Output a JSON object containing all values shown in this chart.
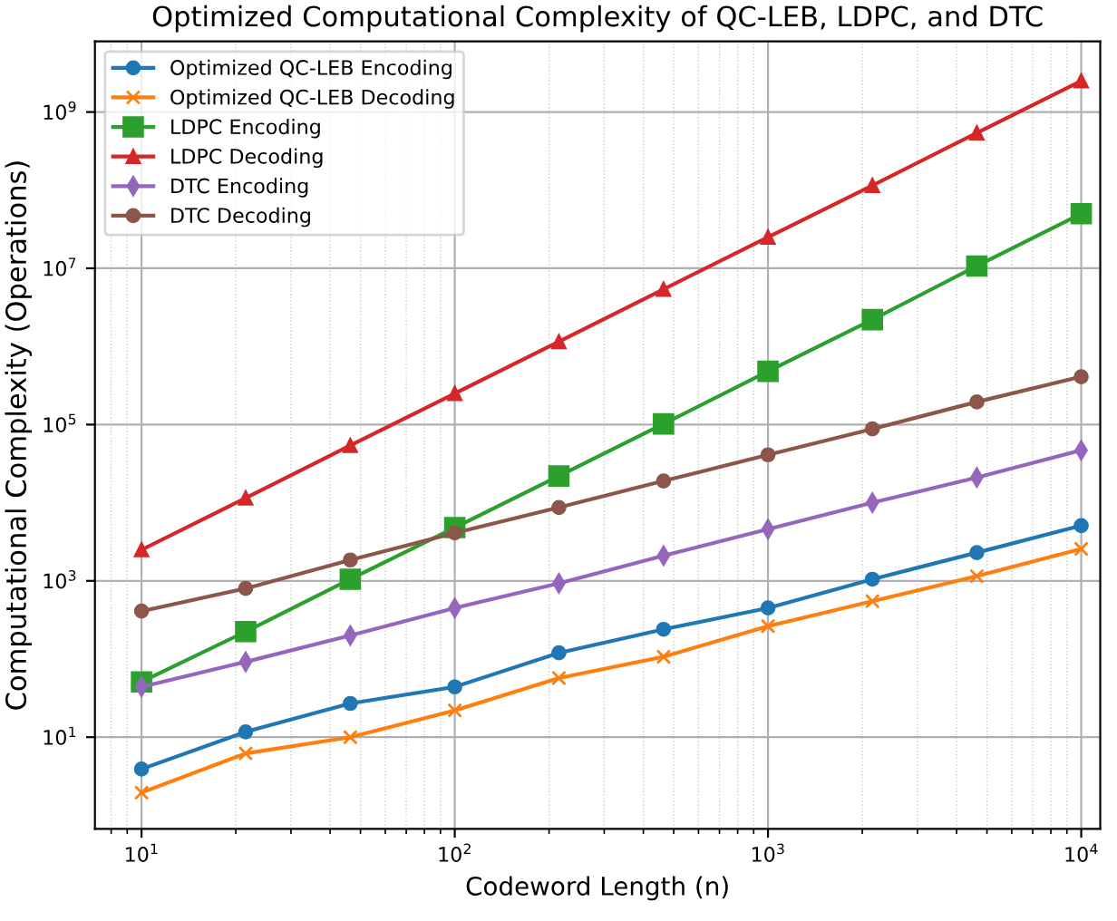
{
  "chart_data": {
    "type": "line",
    "title": "Optimized Computational Complexity of QC-LEB, LDPC, and DTC",
    "xlabel": "Codeword Length (n)",
    "ylabel": "Computational Complexity (Operations)",
    "x": [
      10,
      21.5,
      46.4,
      100,
      215,
      464,
      1000,
      2154,
      4642,
      10000
    ],
    "series": [
      {
        "name": "Optimized QC-LEB Encoding",
        "color": "#1f77b4",
        "marker": "circle",
        "values": [
          3.9,
          11.7,
          27,
          44,
          120,
          240,
          450,
          1050,
          2300,
          5100
        ]
      },
      {
        "name": "Optimized QC-LEB Decoding",
        "color": "#ff7f0e",
        "marker": "cross",
        "values": [
          1.95,
          6.2,
          10,
          22,
          57,
          107,
          263,
          550,
          1150,
          2570
        ]
      },
      {
        "name": "LDPC Encoding",
        "color": "#2ca02c",
        "marker": "square",
        "values": [
          51,
          224,
          1050,
          4800,
          22000,
          102000,
          480000,
          2200000,
          10700000,
          50000000
        ]
      },
      {
        "name": "LDPC Decoding",
        "color": "#d62728",
        "marker": "triangle",
        "values": [
          2500,
          11500,
          54000,
          250000,
          1150000,
          5400000,
          25000000,
          115000000,
          540000000,
          2500000000
        ]
      },
      {
        "name": "DTC Encoding",
        "color": "#9467bd",
        "marker": "diamond",
        "values": [
          44,
          92,
          200,
          450,
          930,
          2100,
          4600,
          10000,
          21000,
          47000
        ]
      },
      {
        "name": "DTC Decoding",
        "color": "#8c564b",
        "marker": "circle",
        "values": [
          410,
          800,
          1850,
          4100,
          8700,
          19000,
          41000,
          88000,
          195000,
          410000
        ]
      }
    ],
    "log": "xy",
    "xlim": [
      7.1,
      11500
    ],
    "ylim": [
      0.67,
      8000000000
    ],
    "xticks": [
      {
        "value": 10,
        "label": "10$^{1}$"
      },
      {
        "value": 100,
        "label": "10$^{2}$"
      },
      {
        "value": 1000,
        "label": "10$^{3}$"
      },
      {
        "value": 10000,
        "label": "10$^{4}$"
      }
    ],
    "yticks": [
      {
        "value": 10,
        "label": "10$^{1}$"
      },
      {
        "value": 1000,
        "label": "10$^{3}$"
      },
      {
        "value": 100000,
        "label": "10$^{5}$"
      },
      {
        "value": 10000000,
        "label": "10$^{7}$"
      },
      {
        "value": 1000000000,
        "label": "10$^{9}$"
      }
    ],
    "grid": true,
    "legend": "top left",
    "line_style": "solid"
  }
}
